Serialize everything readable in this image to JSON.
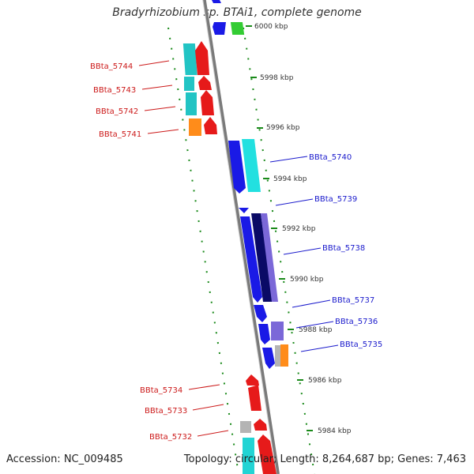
{
  "title": "Bradyrhizobium sp. BTAi1, complete genome",
  "footer": {
    "accession": "Accession: NC_009485",
    "summary": "Topology: circular; Length: 8,264,687 bp; Genes: 7,463"
  },
  "colors": {
    "backbone": "#888888",
    "ticks": "#1a8a1a",
    "forward_label": "#1a1acc",
    "reverse_label": "#cc1a1a"
  },
  "kbp_ticks": [
    "6000 kbp",
    "5998 kbp",
    "5996 kbp",
    "5994 kbp",
    "5992 kbp",
    "5990 kbp",
    "5988 kbp",
    "5986 kbp",
    "5984 kbp"
  ],
  "reverse_genes": [
    "BBta_5744",
    "BBta_5743",
    "BBta_5742",
    "BBta_5741",
    "BBta_5734",
    "BBta_5733",
    "BBta_5732"
  ],
  "forward_genes": [
    "BBta_5740",
    "BBta_5739",
    "BBta_5738",
    "BBta_5737",
    "BBta_5736",
    "BBta_5735"
  ]
}
